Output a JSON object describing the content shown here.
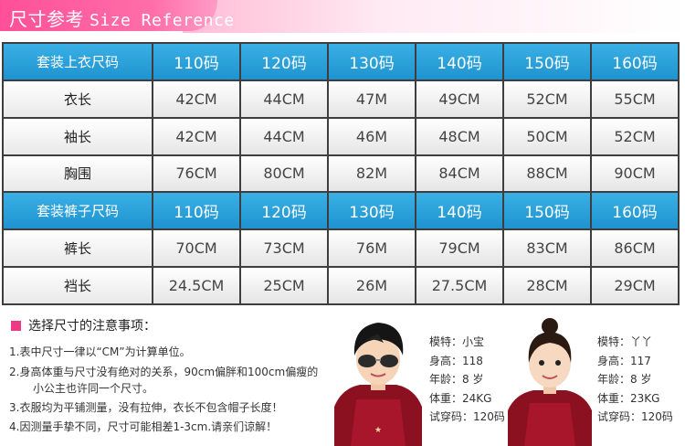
{
  "header": {
    "title_cn": "尺寸参考",
    "title_en": "Size Reference"
  },
  "table": {
    "top_header": {
      "label": "套装上衣尺码",
      "sizes": [
        "110码",
        "120码",
        "130码",
        "140码",
        "150码",
        "160码"
      ]
    },
    "top_rows": [
      {
        "label": "衣长",
        "values": [
          "42CM",
          "44CM",
          "47M",
          "49CM",
          "52CM",
          "55CM"
        ]
      },
      {
        "label": "袖长",
        "values": [
          "42CM",
          "44CM",
          "46M",
          "48CM",
          "50CM",
          "52CM"
        ]
      },
      {
        "label": "胸围",
        "values": [
          "76CM",
          "80CM",
          "82M",
          "84CM",
          "88CM",
          "90CM"
        ]
      }
    ],
    "pants_header": {
      "label": "套装裤子尺码",
      "sizes": [
        "110码",
        "120码",
        "130码",
        "140码",
        "150码",
        "160码"
      ]
    },
    "pants_rows": [
      {
        "label": "裤长",
        "values": [
          "70CM",
          "73CM",
          "76M",
          "79CM",
          "83CM",
          "86CM"
        ]
      },
      {
        "label": "裆长",
        "values": [
          "24.5CM",
          "25CM",
          "26M",
          "27.5CM",
          "28CM",
          "29CM"
        ]
      }
    ]
  },
  "notes": {
    "title": "选择尺寸的注意事项：",
    "items": [
      "1.表中尺寸一律以“CM”为计算单位。",
      "2.身高体重与尺寸没有绝对的关系，90cm偏胖和100cm偏瘦的",
      "小公主也许同一个尺寸。",
      "3.衣服均为平铺测量，没有拉伸，衣长不包含帽子长度！",
      "4.因测量手挚不同，尺寸可能相差1-3cm.请亲们谅解！"
    ]
  },
  "models": [
    {
      "name": "模特：小宝",
      "height": "身高：118",
      "age": "年龄：8 岁",
      "weight": "体重：24KG",
      "size": "试穿码：120码"
    },
    {
      "name": "模特：丫丫",
      "height": "身高：117",
      "age": "年龄：8 岁",
      "weight": "体重：23KG",
      "size": "试穿码：120码"
    }
  ],
  "colors": {
    "banner_pink": "#ff4f98",
    "header_blue": "#1e93cf",
    "grid_dark": "#3e3e3e",
    "accent_square": "#ec3a86"
  }
}
